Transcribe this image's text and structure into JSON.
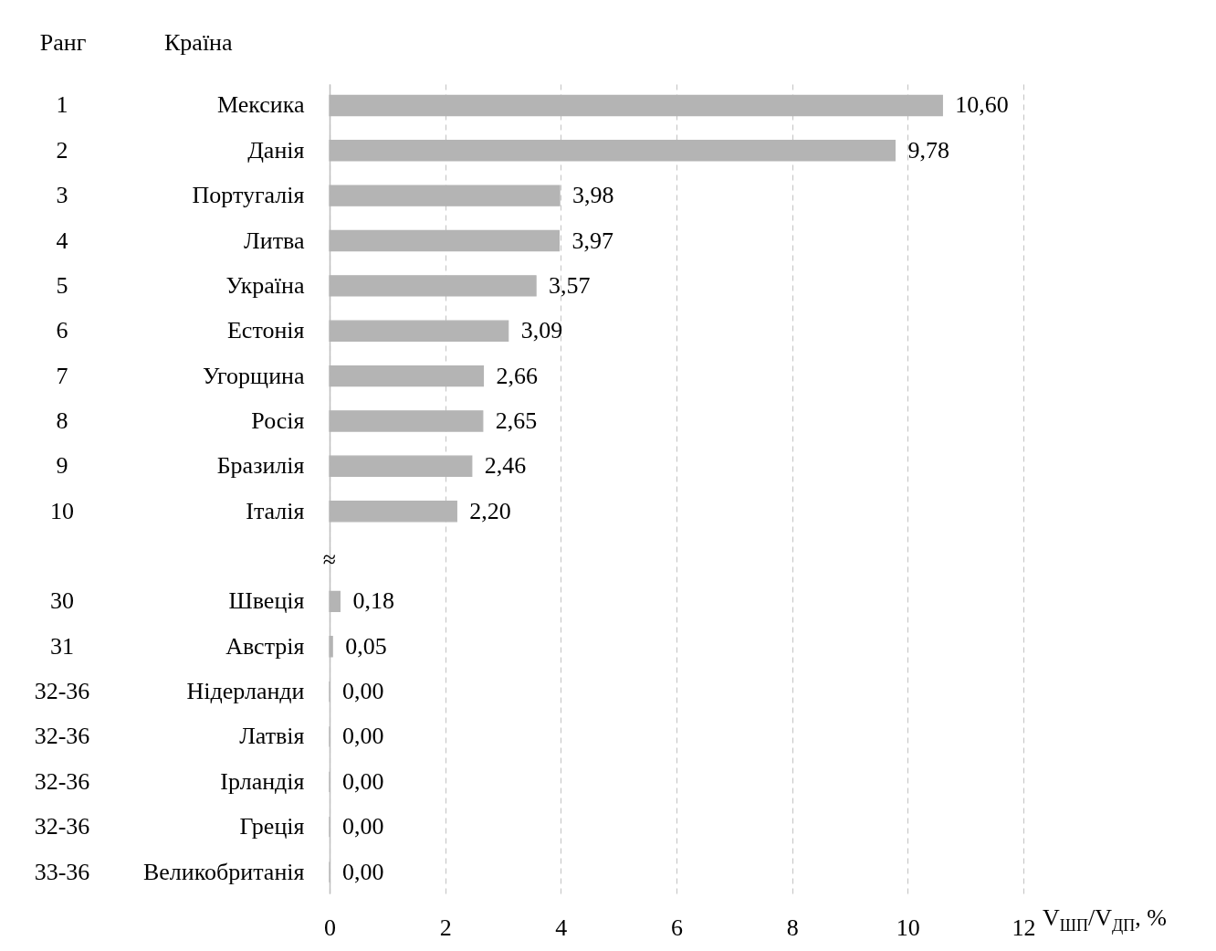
{
  "chart_data": {
    "type": "bar",
    "orientation": "horizontal",
    "ylabel": "Країна",
    "xlabel": "V$_{ШП}$/V$_{ДП}$, %",
    "categories": [
      "Мексика",
      "Данія",
      "Португалія",
      "Литва",
      "Україна",
      "Естонія",
      "Угорщина",
      "Росія",
      "Бразилія",
      "Італія",
      null,
      "Швеція",
      "Австрія",
      "Нідерланди",
      "Латвія",
      "Ірландія",
      "Греція",
      "Великобританія"
    ],
    "values": [
      10.6,
      9.78,
      3.98,
      3.97,
      3.57,
      3.09,
      2.66,
      2.65,
      2.46,
      2.2,
      null,
      0.18,
      0.05,
      0,
      0,
      0,
      0,
      0
    ],
    "value_labels": [
      "10,60",
      "9,78",
      "3,98",
      "3,97",
      "3,57",
      "3,09",
      "2,66",
      "2,65",
      "2,46",
      "2,20",
      null,
      "0,18",
      "0,05",
      "0,00",
      "0,00",
      "0,00",
      "0,00",
      "0,00"
    ],
    "color": "#b4b4b4",
    "xlim": [
      0,
      12
    ],
    "xticks": [
      0,
      2,
      4,
      6,
      8,
      10,
      12
    ],
    "grid": "x",
    "annotations": [
      "Ранг",
      "1",
      "2",
      "3",
      "4",
      "5",
      "6",
      "7",
      "8",
      "9",
      "10",
      "≈",
      "30",
      "31",
      "32-36",
      "32-36",
      "32-36",
      "32-36",
      "33-36"
    ]
  }
}
